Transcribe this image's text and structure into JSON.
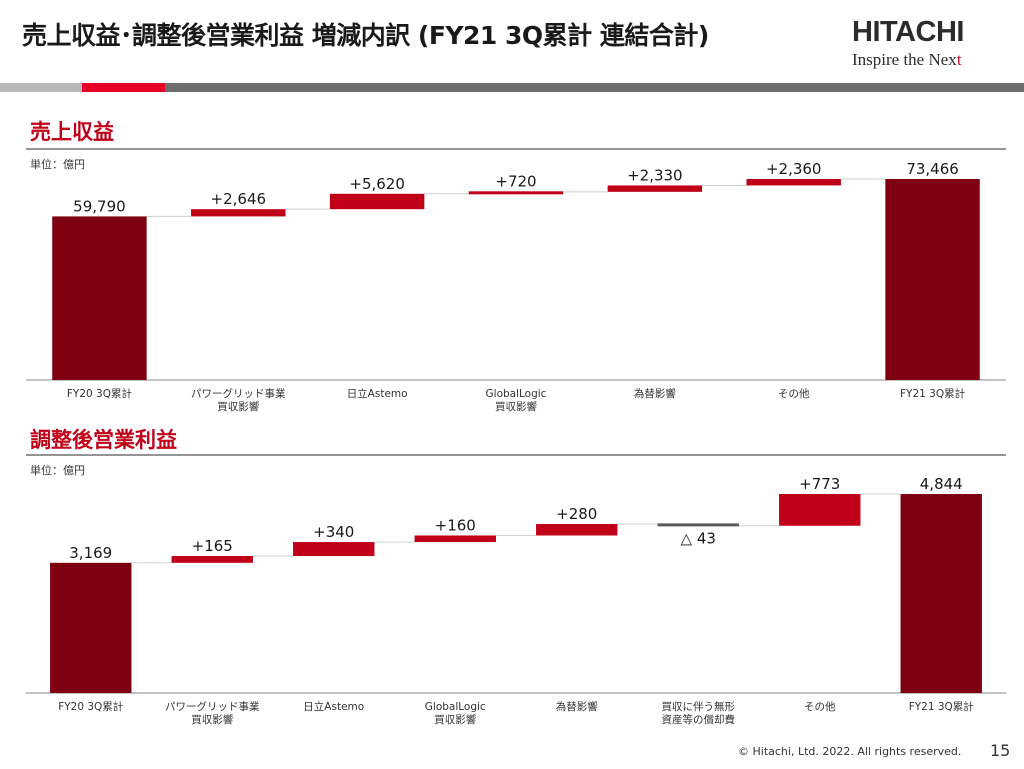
{
  "header": {
    "title": "売上収益･調整後営業利益 増減内訳 (FY21 3Q累計 連結合計)",
    "logo_main": "HITACHI",
    "logo_sub": "Inspire the Next"
  },
  "colors": {
    "accent": "#c00018",
    "total_bar": "#7e0010",
    "delta_bar": "#c00018",
    "negative_bar": "#595959",
    "gridline": "#555555"
  },
  "footer": {
    "copyright": "© Hitachi, Ltd. 2022. All rights reserved.",
    "page_number": "15"
  },
  "chart_data": [
    {
      "type": "bar",
      "title": "売上収益",
      "unit": "単位：億円",
      "categories": [
        "FY20 3Q累計",
        "パワーグリッド事業\n買収影響",
        "日立Astemo",
        "GlobalLogic\n買収影響",
        "為替影響",
        "その他",
        "FY21 3Q累計"
      ],
      "values": [
        59790,
        2646,
        5620,
        720,
        2330,
        2360,
        73466
      ],
      "labels": [
        "59,790",
        "+2,646",
        "+5,620",
        "+720",
        "+2,330",
        "+2,360",
        "73,466"
      ],
      "kinds": [
        "total",
        "delta",
        "delta",
        "delta",
        "delta",
        "delta",
        "total"
      ]
    },
    {
      "type": "bar",
      "title": "調整後営業利益",
      "unit": "単位：億円",
      "categories": [
        "FY20 3Q累計",
        "パワーグリッド事業\n買収影響",
        "日立Astemo",
        "GlobalLogic\n買収影響",
        "為替影響",
        "買収に伴う無形\n資産等の償却費",
        "その他",
        "FY21 3Q累計"
      ],
      "values": [
        3169,
        165,
        340,
        160,
        280,
        -43,
        773,
        4844
      ],
      "labels": [
        "3,169",
        "+165",
        "+340",
        "+160",
        "+280",
        "△ 43",
        "+773",
        "4,844"
      ],
      "kinds": [
        "total",
        "delta",
        "delta",
        "delta",
        "delta",
        "delta",
        "delta",
        "total"
      ]
    }
  ]
}
